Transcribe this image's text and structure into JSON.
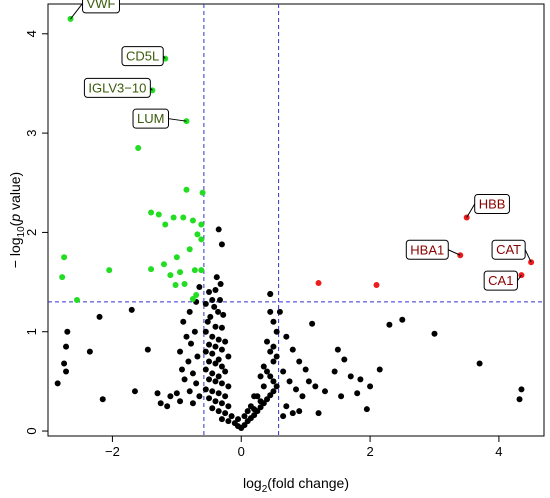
{
  "chart_data": {
    "type": "scatter",
    "xlabel": "log",
    "xlabel_sub": "2",
    "xlabel_tail": "(fold change)",
    "ylabel_lead": "− log",
    "ylabel_sub": "10",
    "ylabel_open": "(",
    "ylabel_p": "p",
    "ylabel_tail": " value)",
    "xlim": [
      -3.0,
      4.7
    ],
    "ylim": [
      -0.05,
      4.3
    ],
    "x_ticks": [
      -2,
      0,
      2,
      4
    ],
    "x_tick_labels": [
      "−2",
      "0",
      "2",
      "4"
    ],
    "y_ticks": [
      0,
      1,
      2,
      3,
      4
    ],
    "y_tick_labels": [
      "0",
      "1",
      "2",
      "3",
      "4"
    ],
    "thresholds": {
      "x": [
        -0.58,
        0.58
      ],
      "y": 1.3
    },
    "colors": {
      "down": "#22dd22",
      "up": "#ee1c1c",
      "ns": "#000000",
      "threshold_line": "#3333cc",
      "label_down_text": "#3a5a0a",
      "label_up_text": "#8b0000"
    },
    "series": [
      {
        "group": "down",
        "points": [
          [
            -2.65,
            4.15
          ],
          [
            -1.18,
            3.75
          ],
          [
            -1.38,
            3.43
          ],
          [
            -0.85,
            3.12
          ],
          [
            -1.6,
            2.85
          ],
          [
            -0.85,
            2.43
          ],
          [
            -0.6,
            2.4
          ],
          [
            -1.4,
            2.2
          ],
          [
            -1.28,
            2.18
          ],
          [
            -1.05,
            2.15
          ],
          [
            -0.9,
            2.15
          ],
          [
            -0.75,
            2.12
          ],
          [
            -0.62,
            2.08
          ],
          [
            -1.18,
            2.08
          ],
          [
            -0.68,
            1.98
          ],
          [
            -0.62,
            1.93
          ],
          [
            -0.8,
            1.83
          ],
          [
            -1.0,
            1.75
          ],
          [
            -1.2,
            1.68
          ],
          [
            -1.4,
            1.63
          ],
          [
            -1.1,
            1.57
          ],
          [
            -0.95,
            1.6
          ],
          [
            -0.62,
            1.62
          ],
          [
            -0.72,
            1.62
          ],
          [
            -0.88,
            1.48
          ],
          [
            -1.02,
            1.47
          ],
          [
            -2.75,
            1.75
          ],
          [
            -2.78,
            1.55
          ],
          [
            -2.05,
            1.62
          ],
          [
            -2.55,
            1.32
          ],
          [
            -0.75,
            1.33
          ],
          [
            -0.7,
            1.37
          ]
        ]
      },
      {
        "group": "up",
        "points": [
          [
            3.5,
            2.15
          ],
          [
            3.4,
            1.77
          ],
          [
            4.5,
            1.7
          ],
          [
            4.35,
            1.57
          ],
          [
            1.2,
            1.49
          ],
          [
            2.1,
            1.47
          ]
        ]
      },
      {
        "group": "ns",
        "points": [
          [
            -0.35,
            2.03
          ],
          [
            -0.3,
            1.88
          ],
          [
            -0.38,
            1.55
          ],
          [
            -0.32,
            1.48
          ],
          [
            -0.4,
            1.42
          ],
          [
            -0.5,
            1.4
          ],
          [
            -0.45,
            1.32
          ],
          [
            -0.33,
            1.32
          ],
          [
            -0.55,
            1.28
          ],
          [
            -0.42,
            1.25
          ],
          [
            -0.36,
            1.2
          ],
          [
            -0.28,
            1.17
          ],
          [
            -0.48,
            1.15
          ],
          [
            -0.52,
            1.1
          ],
          [
            -0.4,
            1.05
          ],
          [
            -0.3,
            1.04
          ],
          [
            -0.55,
            1.0
          ],
          [
            -0.45,
            0.95
          ],
          [
            -0.35,
            0.92
          ],
          [
            -0.25,
            0.9
          ],
          [
            -0.5,
            0.87
          ],
          [
            -0.4,
            0.85
          ],
          [
            -0.3,
            0.82
          ],
          [
            -0.55,
            0.8
          ],
          [
            -0.45,
            0.78
          ],
          [
            -0.2,
            0.75
          ],
          [
            -0.35,
            0.72
          ],
          [
            -0.5,
            0.7
          ],
          [
            -0.4,
            0.68
          ],
          [
            -0.3,
            0.65
          ],
          [
            -0.55,
            0.62
          ],
          [
            -0.25,
            0.6
          ],
          [
            -0.45,
            0.58
          ],
          [
            -0.35,
            0.55
          ],
          [
            -0.5,
            0.52
          ],
          [
            -0.4,
            0.5
          ],
          [
            -0.3,
            0.48
          ],
          [
            -0.2,
            0.45
          ],
          [
            -0.55,
            0.42
          ],
          [
            -0.45,
            0.4
          ],
          [
            -0.35,
            0.38
          ],
          [
            -0.25,
            0.35
          ],
          [
            -0.5,
            0.33
          ],
          [
            -0.4,
            0.3
          ],
          [
            -0.3,
            0.28
          ],
          [
            -0.2,
            0.25
          ],
          [
            -0.45,
            0.23
          ],
          [
            -0.35,
            0.2
          ],
          [
            -0.25,
            0.18
          ],
          [
            -0.15,
            0.15
          ],
          [
            -0.3,
            0.12
          ],
          [
            -0.2,
            0.1
          ],
          [
            -0.1,
            0.08
          ],
          [
            -0.05,
            0.05
          ],
          [
            0.0,
            0.03
          ],
          [
            0.05,
            0.06
          ],
          [
            0.1,
            0.1
          ],
          [
            0.15,
            0.13
          ],
          [
            0.2,
            0.16
          ],
          [
            0.25,
            0.2
          ],
          [
            0.3,
            0.24
          ],
          [
            0.35,
            0.28
          ],
          [
            0.4,
            0.32
          ],
          [
            0.45,
            0.36
          ],
          [
            0.5,
            0.4
          ],
          [
            0.55,
            0.45
          ],
          [
            0.5,
            0.5
          ],
          [
            0.45,
            0.55
          ],
          [
            0.4,
            0.6
          ],
          [
            0.35,
            0.65
          ],
          [
            0.5,
            0.7
          ],
          [
            0.55,
            0.75
          ],
          [
            0.45,
            0.8
          ],
          [
            0.5,
            0.85
          ],
          [
            0.4,
            0.9
          ],
          [
            0.55,
            1.0
          ],
          [
            0.5,
            1.1
          ],
          [
            0.45,
            1.2
          ],
          [
            0.45,
            1.38
          ],
          [
            0.3,
            0.3
          ],
          [
            0.2,
            0.22
          ],
          [
            0.1,
            0.2
          ],
          [
            0.05,
            0.15
          ],
          [
            -0.05,
            0.12
          ],
          [
            0.15,
            0.25
          ],
          [
            0.25,
            0.35
          ],
          [
            0.35,
            0.45
          ],
          [
            0.3,
            0.55
          ],
          [
            0.2,
            0.35
          ],
          [
            -0.65,
            1.45
          ],
          [
            -0.7,
            1.3
          ],
          [
            -0.8,
            1.2
          ],
          [
            -0.9,
            1.1
          ],
          [
            -0.72,
            1.0
          ],
          [
            -0.85,
            0.95
          ],
          [
            -0.78,
            0.88
          ],
          [
            -0.95,
            0.8
          ],
          [
            -0.68,
            0.75
          ],
          [
            -0.82,
            0.7
          ],
          [
            -0.92,
            0.62
          ],
          [
            -0.75,
            0.58
          ],
          [
            -0.88,
            0.52
          ],
          [
            -0.7,
            0.48
          ],
          [
            -0.8,
            0.4
          ],
          [
            -1.0,
            0.38
          ],
          [
            -0.95,
            0.3
          ],
          [
            -0.75,
            0.28
          ],
          [
            -0.65,
            0.35
          ],
          [
            -1.1,
            0.35
          ],
          [
            -1.15,
            0.25
          ],
          [
            -1.3,
            0.38
          ],
          [
            -1.25,
            0.28
          ],
          [
            -1.45,
            0.82
          ],
          [
            -1.7,
            1.22
          ],
          [
            -2.2,
            1.15
          ],
          [
            -2.35,
            0.8
          ],
          [
            -2.7,
            1.0
          ],
          [
            -2.72,
            0.85
          ],
          [
            -2.75,
            0.68
          ],
          [
            -2.72,
            0.6
          ],
          [
            -2.85,
            0.48
          ],
          [
            -1.65,
            0.4
          ],
          [
            -2.15,
            0.32
          ],
          [
            0.6,
            1.2
          ],
          [
            0.7,
            0.95
          ],
          [
            0.8,
            0.82
          ],
          [
            0.9,
            0.7
          ],
          [
            0.65,
            0.6
          ],
          [
            0.75,
            0.5
          ],
          [
            0.85,
            0.42
          ],
          [
            0.95,
            0.35
          ],
          [
            0.7,
            0.25
          ],
          [
            0.8,
            0.18
          ],
          [
            0.65,
            0.15
          ],
          [
            0.9,
            0.2
          ],
          [
            1.1,
            1.08
          ],
          [
            1.0,
            0.62
          ],
          [
            1.15,
            0.45
          ],
          [
            1.3,
            0.4
          ],
          [
            1.2,
            0.18
          ],
          [
            1.05,
            0.5
          ],
          [
            1.5,
            0.82
          ],
          [
            1.6,
            0.72
          ],
          [
            1.45,
            0.6
          ],
          [
            1.7,
            0.55
          ],
          [
            1.85,
            0.52
          ],
          [
            1.55,
            0.35
          ],
          [
            1.8,
            0.38
          ],
          [
            2.0,
            0.45
          ],
          [
            1.95,
            0.22
          ],
          [
            2.3,
            1.07
          ],
          [
            2.5,
            1.12
          ],
          [
            2.15,
            0.62
          ],
          [
            3.0,
            0.98
          ],
          [
            3.7,
            0.68
          ],
          [
            4.35,
            0.42
          ],
          [
            4.32,
            0.32
          ],
          [
            0.45,
            1.38
          ]
        ]
      }
    ],
    "annotations": [
      {
        "label": "VWF",
        "x": -2.65,
        "y": 4.15,
        "group": "down"
      },
      {
        "label": "CD5L",
        "x": -1.18,
        "y": 3.75,
        "group": "down"
      },
      {
        "label": "IGLV3−10",
        "x": -1.38,
        "y": 3.43,
        "group": "down"
      },
      {
        "label": "LUM",
        "x": -0.85,
        "y": 3.12,
        "group": "down"
      },
      {
        "label": "HBB",
        "x": 3.5,
        "y": 2.15,
        "group": "up"
      },
      {
        "label": "HBA1",
        "x": 3.4,
        "y": 1.77,
        "group": "up"
      },
      {
        "label": "CAT",
        "x": 4.5,
        "y": 1.7,
        "group": "up"
      },
      {
        "label": "CA1",
        "x": 4.35,
        "y": 1.57,
        "group": "up"
      }
    ]
  }
}
